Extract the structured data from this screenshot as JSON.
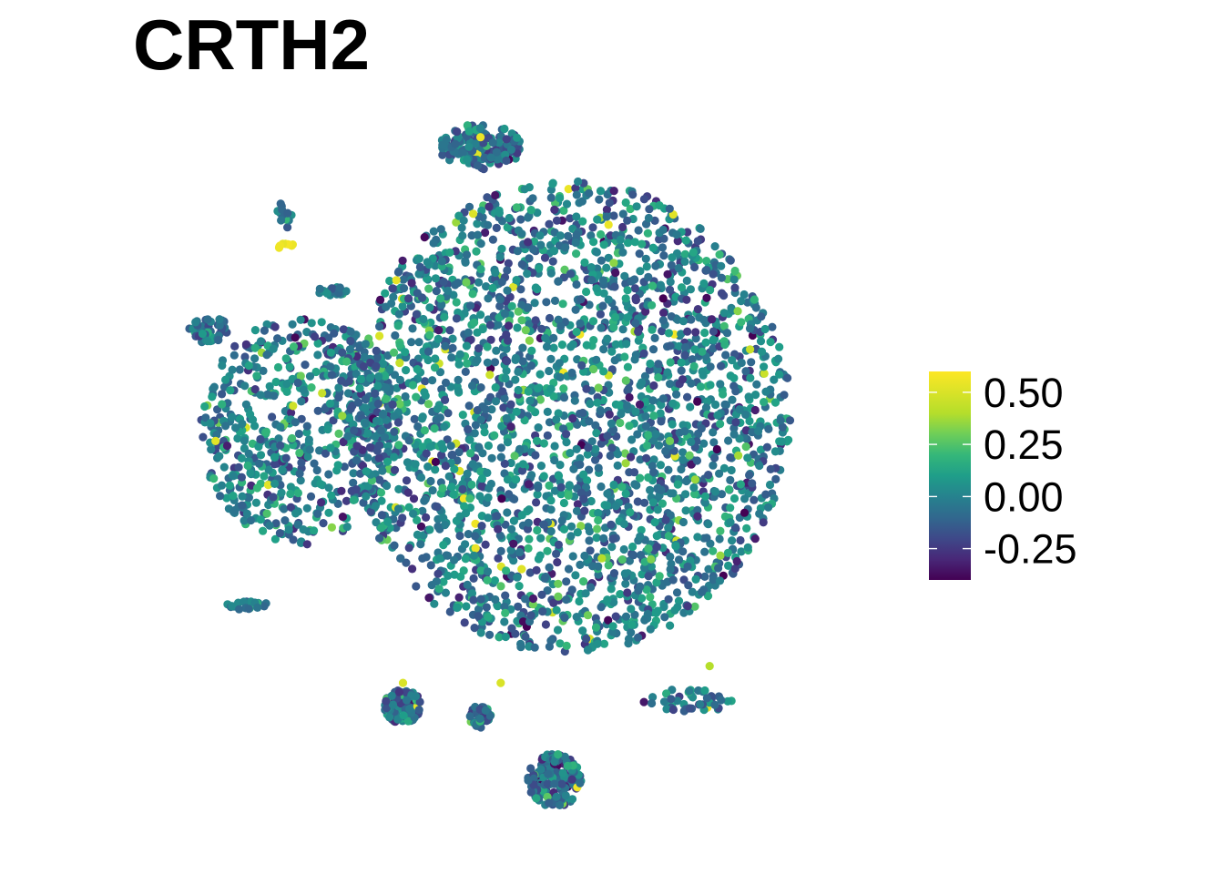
{
  "chart_data": {
    "type": "scatter",
    "title": "CRTH2",
    "xlabel": "",
    "ylabel": "",
    "axes_visible": false,
    "grid": false,
    "legend": {
      "type": "colorbar",
      "placement": "right",
      "palette": "viridis",
      "ticks": [
        {
          "value": 0.5,
          "label": "0.50"
        },
        {
          "value": 0.25,
          "label": "0.25"
        },
        {
          "value": 0.0,
          "label": "0.00"
        },
        {
          "value": -0.25,
          "label": "-0.25"
        }
      ],
      "range": [
        -0.4,
        0.6
      ]
    },
    "colors": {
      "low": "#440154",
      "mid_low": "#3b528b",
      "mid": "#21908d",
      "mid_high": "#5dc863",
      "high": "#fde725"
    },
    "clusters": [
      {
        "id": "main-cluster",
        "cx": 1.4,
        "cy": 0.6,
        "rx": 6.6,
        "ry": 7.0,
        "n": 2600,
        "mean": -0.03,
        "sd": 0.14
      },
      {
        "id": "left-cluster",
        "cx": -6.5,
        "cy": 0.2,
        "rx": 3.0,
        "ry": 3.4,
        "n": 620,
        "mean": -0.03,
        "sd": 0.14
      },
      {
        "id": "top-small-cluster",
        "cx": -1.2,
        "cy": 8.6,
        "rx": 1.2,
        "ry": 0.7,
        "n": 150,
        "mean": -0.08,
        "sd": 0.11
      },
      {
        "id": "left-tiny-cluster",
        "cx": -9.3,
        "cy": 3.2,
        "rx": 0.6,
        "ry": 0.4,
        "n": 45,
        "mean": -0.08,
        "sd": 0.1
      },
      {
        "id": "upper-left-strand",
        "cx": -7.0,
        "cy": 6.6,
        "rx": 0.25,
        "ry": 0.45,
        "n": 12,
        "mean": -0.05,
        "sd": 0.1
      },
      {
        "id": "yellow-spot",
        "cx": -6.95,
        "cy": 5.65,
        "rx": 0.25,
        "ry": 0.1,
        "n": 8,
        "mean": 0.55,
        "sd": 0.04
      },
      {
        "id": "mid-left-small",
        "cx": -5.6,
        "cy": 4.35,
        "rx": 0.45,
        "ry": 0.15,
        "n": 22,
        "mean": 0.03,
        "sd": 0.1
      },
      {
        "id": "bottom-left-strand",
        "cx": -8.2,
        "cy": -5.0,
        "rx": 0.7,
        "ry": 0.15,
        "n": 18,
        "mean": -0.03,
        "sd": 0.11
      },
      {
        "id": "bottom-small-a",
        "cx": -3.5,
        "cy": -8.0,
        "rx": 0.55,
        "ry": 0.5,
        "n": 110,
        "mean": -0.05,
        "sd": 0.11
      },
      {
        "id": "bottom-small-b",
        "cx": -1.2,
        "cy": -8.3,
        "rx": 0.35,
        "ry": 0.35,
        "n": 40,
        "mean": -0.05,
        "sd": 0.11
      },
      {
        "id": "bottom-cluster",
        "cx": 1.0,
        "cy": -10.2,
        "rx": 0.8,
        "ry": 0.8,
        "n": 160,
        "mean": -0.08,
        "sd": 0.12
      },
      {
        "id": "right-bottom-tail",
        "cx": 5.0,
        "cy": -7.8,
        "rx": 1.5,
        "ry": 0.35,
        "n": 45,
        "mean": -0.03,
        "sd": 0.13
      }
    ],
    "outliers": [
      {
        "x": 2.6,
        "y": 6.3,
        "value": 0.55
      },
      {
        "x": -1.2,
        "y": 8.9,
        "value": 0.55
      },
      {
        "x": -3.5,
        "y": -7.3,
        "value": 0.5
      },
      {
        "x": -0.6,
        "y": -7.3,
        "value": 0.5
      },
      {
        "x": -5.9,
        "y": 1.3,
        "value": 0.45
      },
      {
        "x": -4.2,
        "y": 3.0,
        "value": 0.5
      },
      {
        "x": -3.6,
        "y": 2.2,
        "value": 0.45
      },
      {
        "x": 2.4,
        "y": -3.6,
        "value": 0.4
      },
      {
        "x": 6.8,
        "y": 2.6,
        "value": 0.45
      },
      {
        "x": 5.6,
        "y": -6.8,
        "value": 0.4
      }
    ]
  }
}
